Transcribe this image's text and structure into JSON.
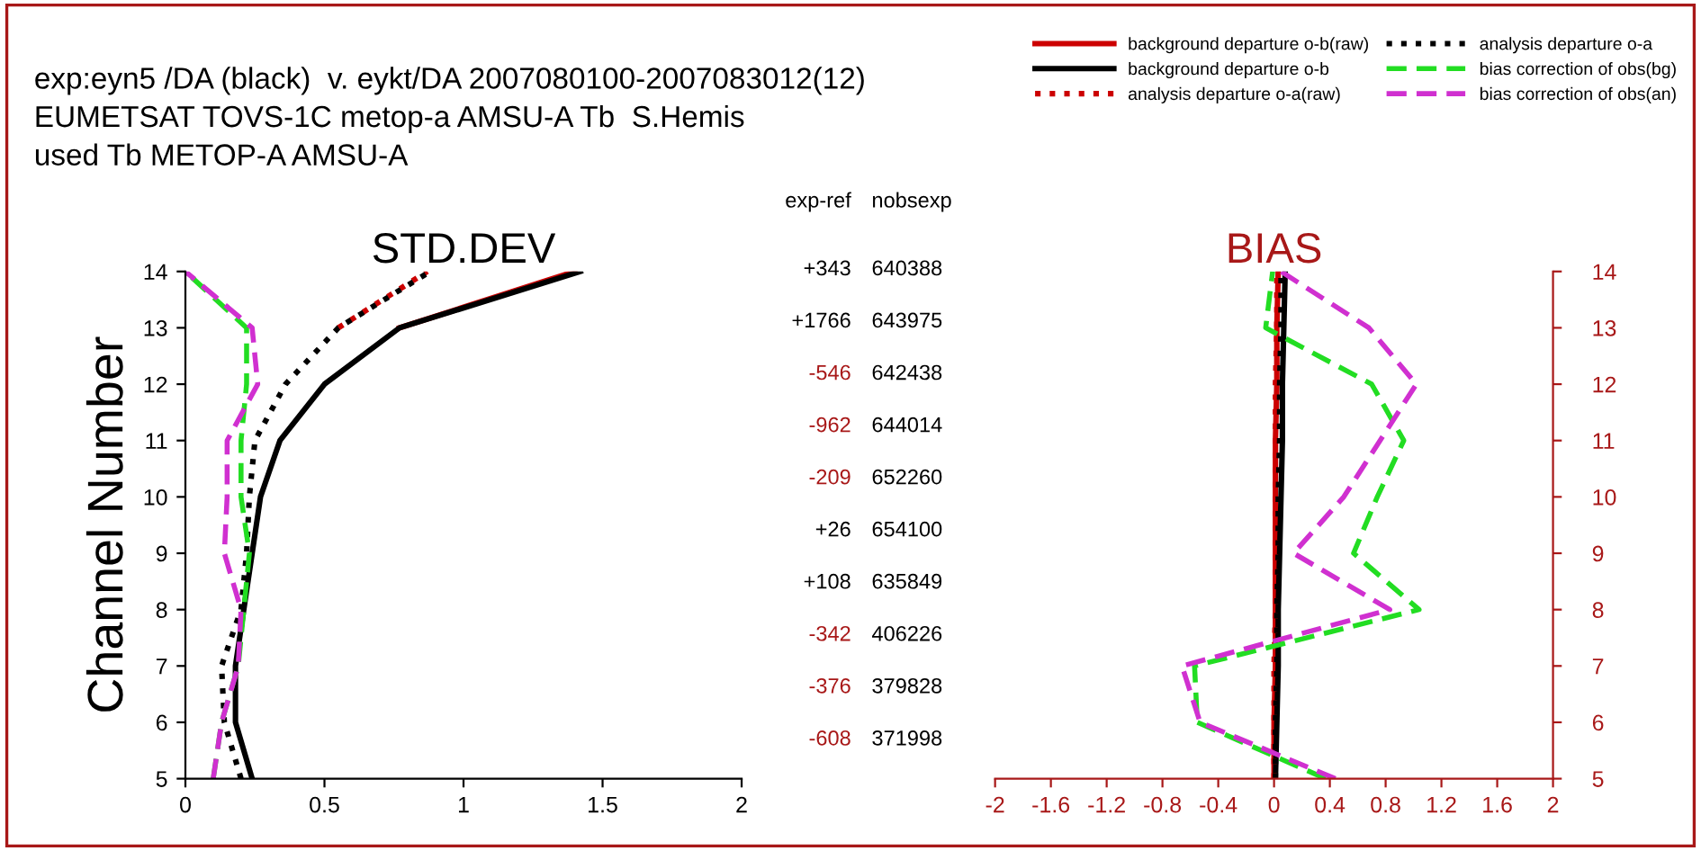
{
  "chart_data": [
    {
      "type": "line",
      "orientation": "horizontal",
      "title": "STD.DEV",
      "ylabel": "Channel Number",
      "annotations": [
        "exp:eyn5 /DA (black)  v. eykt/DA 2007080100-2007083012(12)",
        "EUMETSAT TOVS-1C metop-a AMSU-A Tb  S.Hemis",
        "used Tb METOP-A AMSU-A"
      ],
      "x": [
        5,
        6,
        7,
        8,
        9,
        10,
        11,
        12,
        13,
        14
      ],
      "series": [
        {
          "color": "#cc0000",
          "line_style": "solid",
          "values": [
            null,
            null,
            null,
            null,
            null,
            null,
            null,
            null,
            0.77,
            1.4
          ]
        },
        {
          "color": "#000000",
          "line_style": "solid",
          "values": [
            0.24,
            0.18,
            0.18,
            0.21,
            0.24,
            0.27,
            0.34,
            0.5,
            0.77,
            1.42
          ]
        },
        {
          "color": "#cc0000",
          "line_style": "dotted",
          "values": [
            null,
            null,
            null,
            null,
            null,
            null,
            null,
            null,
            0.55,
            0.87
          ]
        },
        {
          "color": "#000000",
          "line_style": "dotted",
          "values": [
            0.2,
            0.14,
            0.13,
            0.2,
            0.22,
            0.23,
            0.25,
            0.36,
            0.55,
            0.88
          ]
        },
        {
          "color": "#22dd22",
          "line_style": "dashed",
          "values": [
            0.1,
            0.13,
            0.19,
            0.21,
            0.23,
            0.2,
            0.2,
            0.22,
            0.22,
            0.0
          ]
        },
        {
          "color": "#d030d0",
          "line_style": "dashed",
          "values": [
            0.1,
            0.13,
            0.19,
            0.2,
            0.14,
            0.15,
            0.15,
            0.26,
            0.24,
            0.0
          ]
        }
      ],
      "xlim": [
        0,
        2
      ],
      "xticks": [
        0,
        0.5,
        1,
        1.5,
        2
      ],
      "ylim": [
        5,
        14
      ],
      "yticks": [
        5,
        6,
        7,
        8,
        9,
        10,
        11,
        12,
        13,
        14
      ],
      "grid": false
    },
    {
      "type": "other",
      "annotations": [
        "exp-ref",
        "nobsexp",
        "+343",
        "640388",
        "+1766",
        "643975",
        "-546",
        "642438",
        "-962",
        "644014",
        "-209",
        "652260",
        "+26",
        "654100",
        "+108",
        "635849",
        "-342",
        "406226",
        "-376",
        "379828",
        "-608",
        "371998"
      ]
    },
    {
      "type": "line",
      "orientation": "horizontal",
      "title": "BIAS",
      "x": [
        5,
        6,
        7,
        8,
        9,
        10,
        11,
        12,
        13,
        14
      ],
      "series": [
        {
          "name": "background departure o-b(raw)",
          "color": "#cc0000",
          "line_style": "solid",
          "values": [
            0.0,
            0.0,
            0.01,
            0.01,
            0.01,
            0.01,
            0.01,
            0.02,
            0.02,
            0.03
          ]
        },
        {
          "name": "background departure o-b",
          "color": "#000000",
          "line_style": "solid",
          "values": [
            0.01,
            0.02,
            0.03,
            0.03,
            0.04,
            0.05,
            0.06,
            0.06,
            0.07,
            0.08
          ]
        },
        {
          "name": "analysis departure o-a(raw)",
          "color": "#cc0000",
          "line_style": "dotted",
          "values": [
            0.0,
            0.0,
            0.0,
            0.01,
            0.01,
            0.01,
            0.01,
            0.01,
            0.02,
            0.02
          ]
        },
        {
          "name": "analysis departure o-a",
          "color": "#000000",
          "line_style": "dotted",
          "values": [
            0.01,
            0.01,
            0.02,
            0.02,
            0.03,
            0.03,
            0.04,
            0.04,
            0.05,
            0.05
          ]
        },
        {
          "name": "bias correction of obs(bg)",
          "color": "#22dd22",
          "line_style": "dashed",
          "values": [
            0.37,
            -0.55,
            -0.57,
            1.04,
            0.57,
            0.74,
            0.93,
            0.7,
            -0.06,
            -0.01
          ]
        },
        {
          "name": "bias correction of obs(an)",
          "color": "#d030d0",
          "line_style": "dashed",
          "values": [
            0.44,
            -0.53,
            -0.66,
            0.83,
            0.14,
            0.5,
            0.76,
            1.02,
            0.68,
            0.05
          ]
        }
      ],
      "xlim": [
        -2,
        2
      ],
      "xticks": [
        -2,
        -1.6,
        -1.2,
        -0.8,
        -0.4,
        0,
        0.4,
        0.8,
        1.2,
        1.6,
        2
      ],
      "ylim": [
        5,
        14
      ],
      "yticks": [
        5,
        6,
        7,
        8,
        9,
        10,
        11,
        12,
        13,
        14
      ],
      "grid": false,
      "legend": "top"
    }
  ]
}
